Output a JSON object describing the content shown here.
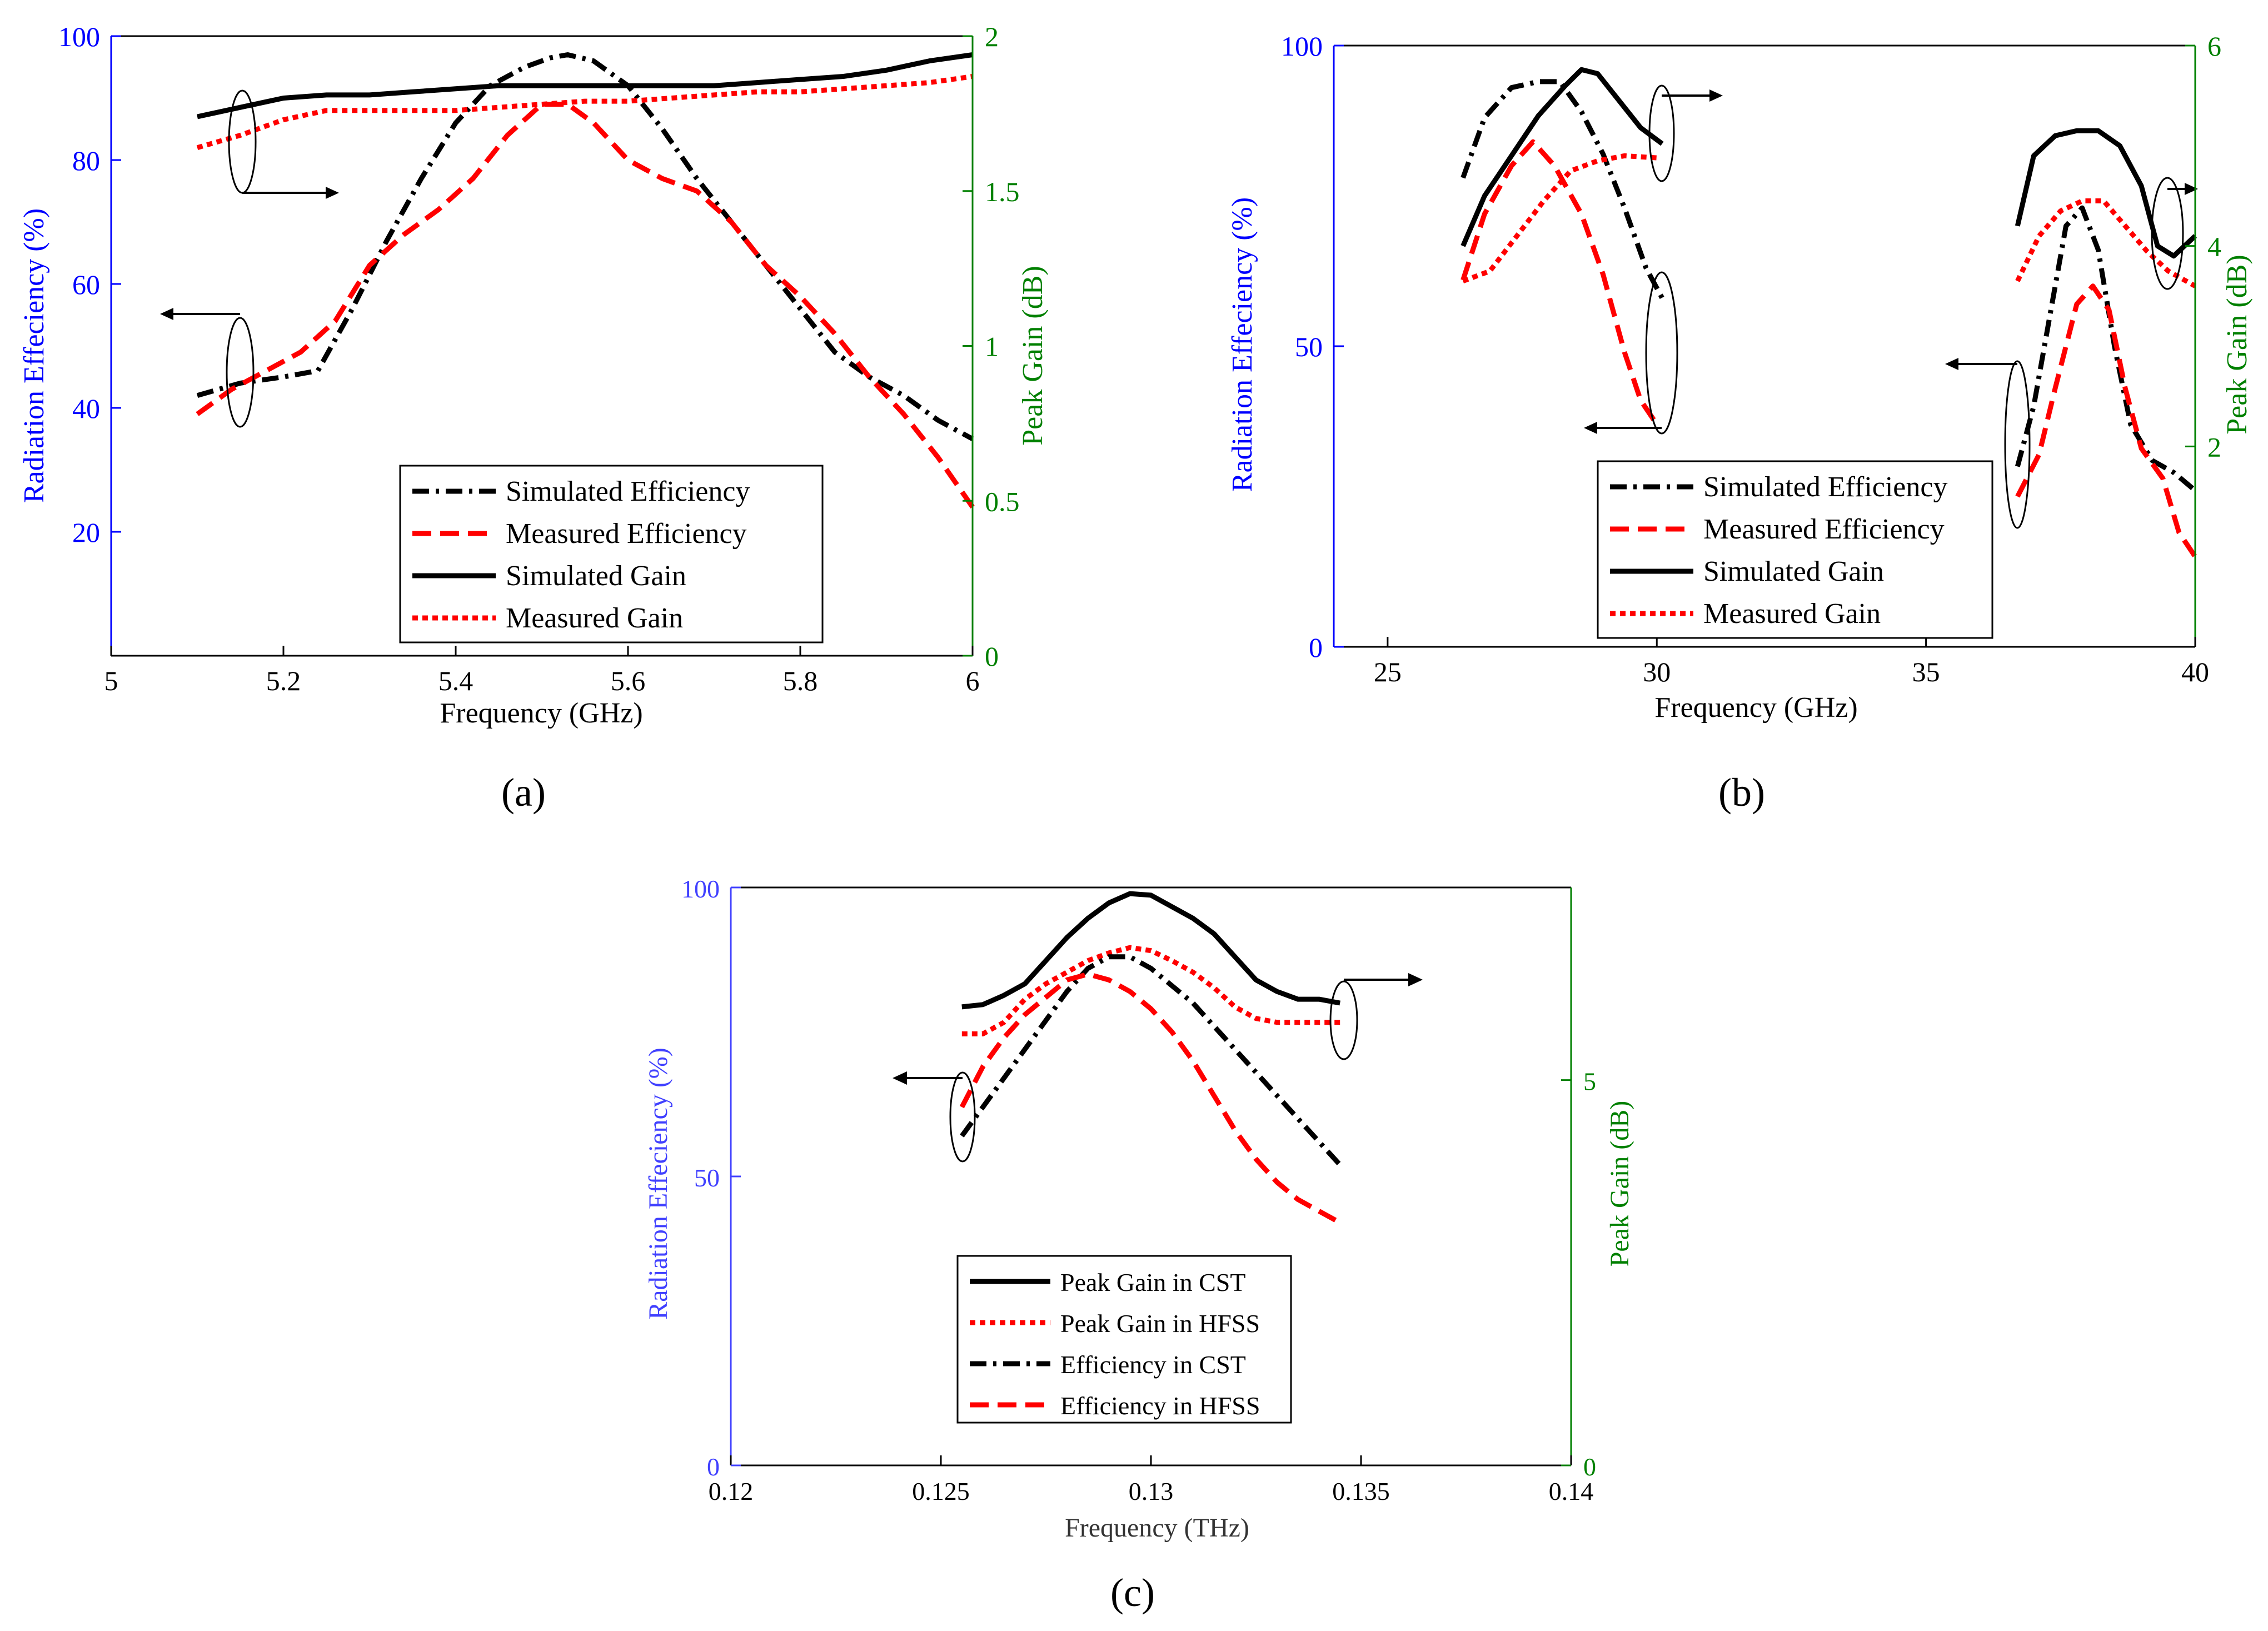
{
  "colors": {
    "left_axis": "#0000ff",
    "right_axis": "#008000",
    "black": "#000000",
    "red": "#ff0000"
  },
  "chart_data": [
    {
      "type": "line",
      "panel_label": "(a)",
      "xlabel": "Frequency (GHz)",
      "ylabel": "Radiation Effeciency (%)",
      "y2label": "Peak Gain (dB)",
      "xlim": [
        5,
        6
      ],
      "ylim": [
        0,
        100
      ],
      "y2lim": [
        0,
        2
      ],
      "xticks": [
        5,
        5.2,
        5.4,
        5.6,
        5.8,
        6
      ],
      "xtick_labels": [
        "5",
        "5.2",
        "5.4",
        "5.6",
        "5.8",
        "6"
      ],
      "yticks": [
        20,
        40,
        60,
        80,
        100
      ],
      "ytick_labels": [
        "20",
        "40",
        "60",
        "80",
        "100"
      ],
      "y2ticks": [
        0,
        0.5,
        1,
        1.5,
        2
      ],
      "y2tick_labels": [
        "0",
        "0.5",
        "1",
        "1.5",
        "2"
      ],
      "legend_position": "bottom-right",
      "series": [
        {
          "name": "Simulated Efficiency",
          "axis": "left",
          "color": "#000000",
          "style": "dashdot",
          "x": [
            5.1,
            5.15,
            5.2,
            5.24,
            5.28,
            5.32,
            5.36,
            5.4,
            5.44,
            5.48,
            5.51,
            5.53,
            5.56,
            5.6,
            5.64,
            5.68,
            5.72,
            5.76,
            5.8,
            5.84,
            5.88,
            5.92,
            5.96,
            6.0
          ],
          "y": [
            42,
            44,
            45,
            46,
            56,
            67,
            77,
            86,
            92,
            95,
            96.5,
            97,
            96,
            92,
            85,
            77,
            70,
            63,
            56,
            49,
            45,
            42,
            38,
            35
          ]
        },
        {
          "name": "Measured Efficiency",
          "axis": "left",
          "color": "#ff0000",
          "style": "dashed",
          "x": [
            5.1,
            5.14,
            5.18,
            5.22,
            5.26,
            5.3,
            5.34,
            5.38,
            5.42,
            5.46,
            5.5,
            5.53,
            5.56,
            5.6,
            5.64,
            5.68,
            5.72,
            5.76,
            5.8,
            5.84,
            5.88,
            5.92,
            5.96,
            6.0
          ],
          "y": [
            39,
            43,
            46,
            49,
            54,
            63,
            68,
            72,
            77,
            84,
            89,
            89,
            86,
            80,
            77,
            75,
            70,
            63,
            58,
            52,
            45,
            39,
            32,
            24
          ]
        },
        {
          "name": "Simulated Gain",
          "axis": "right",
          "color": "#000000",
          "style": "solid",
          "x": [
            5.1,
            5.15,
            5.2,
            5.25,
            5.3,
            5.35,
            5.4,
            5.45,
            5.5,
            5.55,
            5.6,
            5.65,
            5.7,
            5.75,
            5.8,
            5.85,
            5.9,
            5.95,
            6.0
          ],
          "y": [
            1.74,
            1.77,
            1.8,
            1.81,
            1.81,
            1.82,
            1.83,
            1.84,
            1.84,
            1.84,
            1.84,
            1.84,
            1.84,
            1.85,
            1.86,
            1.87,
            1.89,
            1.92,
            1.94
          ]
        },
        {
          "name": "Measured Gain",
          "axis": "right",
          "color": "#ff0000",
          "style": "dotted",
          "x": [
            5.1,
            5.15,
            5.2,
            5.25,
            5.3,
            5.35,
            5.4,
            5.45,
            5.5,
            5.55,
            5.6,
            5.65,
            5.7,
            5.75,
            5.8,
            5.85,
            5.9,
            5.95,
            6.0
          ],
          "y": [
            1.64,
            1.68,
            1.73,
            1.76,
            1.76,
            1.76,
            1.76,
            1.77,
            1.78,
            1.79,
            1.79,
            1.8,
            1.81,
            1.82,
            1.82,
            1.83,
            1.84,
            1.85,
            1.87
          ]
        }
      ]
    },
    {
      "type": "line",
      "panel_label": "(b)",
      "xlabel": "Frequency (GHz)",
      "ylabel": "Radiation Effeciency (%)",
      "y2label": "Peak Gain (dB)",
      "xlim": [
        24,
        40
      ],
      "ylim": [
        0,
        100
      ],
      "y2lim": [
        0,
        6
      ],
      "xticks": [
        25,
        30,
        35,
        40
      ],
      "xtick_labels": [
        "25",
        "30",
        "35",
        "40"
      ],
      "yticks": [
        0,
        50,
        100
      ],
      "ytick_labels": [
        "0",
        "50",
        "100"
      ],
      "y2ticks": [
        2,
        4,
        6
      ],
      "y2tick_labels": [
        "2",
        "4",
        "6"
      ],
      "legend_position": "bottom-center",
      "series": [
        {
          "name": "Simulated Efficiency",
          "axis": "left",
          "color": "#000000",
          "style": "dashdot",
          "segments": [
            {
              "x": [
                26.4,
                26.8,
                27.3,
                27.8,
                28.2,
                28.6,
                29.0,
                29.4,
                29.8,
                30.1
              ],
              "y": [
                78,
                88,
                93,
                94,
                94,
                89,
                82,
                73,
                63,
                58
              ]
            },
            {
              "x": [
                36.7,
                37.0,
                37.3,
                37.6,
                37.9,
                38.2,
                38.5,
                38.8,
                39.2,
                39.6,
                40.0
              ],
              "y": [
                30,
                40,
                55,
                70,
                73,
                66,
                50,
                37,
                31,
                29,
                26
              ]
            }
          ]
        },
        {
          "name": "Measured Efficiency",
          "axis": "left",
          "color": "#ff0000",
          "style": "dashed",
          "segments": [
            {
              "x": [
                26.4,
                26.8,
                27.3,
                27.7,
                28.1,
                28.6,
                29.0,
                29.4,
                29.7,
                30.0
              ],
              "y": [
                61,
                72,
                80,
                84,
                80,
                72,
                62,
                49,
                41,
                37
              ]
            },
            {
              "x": [
                36.7,
                37.1,
                37.4,
                37.8,
                38.1,
                38.4,
                38.7,
                39.0,
                39.4,
                39.7,
                40.0
              ],
              "y": [
                25,
                32,
                43,
                57,
                60,
                56,
                43,
                33,
                28,
                19,
                15
              ]
            }
          ]
        },
        {
          "name": "Simulated Gain",
          "axis": "right",
          "color": "#000000",
          "style": "solid",
          "segments": [
            {
              "x": [
                26.4,
                26.8,
                27.3,
                27.8,
                28.3,
                28.6,
                28.9,
                29.3,
                29.7,
                30.1
              ],
              "y": [
                4.0,
                4.5,
                4.9,
                5.3,
                5.6,
                5.76,
                5.72,
                5.45,
                5.18,
                5.02
              ]
            },
            {
              "x": [
                36.7,
                37.0,
                37.4,
                37.8,
                38.2,
                38.6,
                39.0,
                39.3,
                39.6,
                40.0
              ],
              "y": [
                4.2,
                4.9,
                5.1,
                5.15,
                5.15,
                5.0,
                4.6,
                4.0,
                3.9,
                4.1
              ]
            }
          ]
        },
        {
          "name": "Measured Gain",
          "axis": "right",
          "color": "#ff0000",
          "style": "dotted",
          "segments": [
            {
              "x": [
                26.4,
                26.9,
                27.4,
                27.9,
                28.4,
                28.9,
                29.4,
                30.0
              ],
              "y": [
                3.65,
                3.75,
                4.1,
                4.45,
                4.75,
                4.85,
                4.9,
                4.88
              ]
            },
            {
              "x": [
                36.7,
                37.1,
                37.5,
                37.9,
                38.3,
                38.7,
                39.1,
                39.5,
                40.0
              ],
              "y": [
                3.65,
                4.1,
                4.35,
                4.45,
                4.45,
                4.2,
                3.95,
                3.75,
                3.6
              ]
            }
          ]
        }
      ]
    },
    {
      "type": "line",
      "panel_label": "(c)",
      "xlabel": "Frequency (THz)",
      "ylabel": "Radiation Effeciency (%)",
      "y2label": "Peak Gain (dB)",
      "xlim": [
        0.12,
        0.14
      ],
      "ylim": [
        0,
        100
      ],
      "y2lim": [
        0,
        7.5
      ],
      "xticks": [
        0.12,
        0.125,
        0.13,
        0.135,
        0.14
      ],
      "xtick_labels": [
        "0.12",
        "0.125",
        "0.13",
        "0.135",
        "0.14"
      ],
      "yticks": [
        0,
        50,
        100
      ],
      "ytick_labels": [
        "0",
        "50",
        "100"
      ],
      "y2ticks": [
        0,
        5
      ],
      "y2tick_labels": [
        "0",
        "5"
      ],
      "legend_position": "bottom-center",
      "series": [
        {
          "name": "Peak Gain in CST",
          "axis": "right",
          "color": "#000000",
          "style": "solid",
          "x": [
            0.1255,
            0.126,
            0.1265,
            0.127,
            0.1275,
            0.128,
            0.1285,
            0.129,
            0.1295,
            0.13,
            0.1305,
            0.131,
            0.1315,
            0.132,
            0.1325,
            0.133,
            0.1335,
            0.134,
            0.1345
          ],
          "y": [
            5.95,
            5.98,
            6.1,
            6.25,
            6.55,
            6.85,
            7.1,
            7.3,
            7.42,
            7.4,
            7.25,
            7.1,
            6.9,
            6.6,
            6.3,
            6.15,
            6.05,
            6.05,
            6.0
          ]
        },
        {
          "name": "Peak Gain in HFSS",
          "axis": "right",
          "color": "#ff0000",
          "style": "dotted",
          "x": [
            0.1255,
            0.126,
            0.1265,
            0.127,
            0.1275,
            0.128,
            0.1285,
            0.129,
            0.1295,
            0.13,
            0.1305,
            0.131,
            0.1315,
            0.132,
            0.1325,
            0.133,
            0.1335,
            0.134,
            0.1345
          ],
          "y": [
            5.6,
            5.6,
            5.75,
            6.05,
            6.25,
            6.4,
            6.55,
            6.65,
            6.72,
            6.68,
            6.55,
            6.4,
            6.2,
            5.95,
            5.8,
            5.75,
            5.75,
            5.75,
            5.75
          ]
        },
        {
          "name": "Efficiency in CST",
          "axis": "left",
          "color": "#000000",
          "style": "dashdot",
          "x": [
            0.1255,
            0.126,
            0.1265,
            0.127,
            0.1275,
            0.128,
            0.1285,
            0.129,
            0.1295,
            0.13,
            0.1305,
            0.131,
            0.1315,
            0.132,
            0.1325,
            0.133,
            0.1335,
            0.134,
            0.1345
          ],
          "y": [
            57,
            62,
            67,
            72,
            77,
            82,
            86,
            88,
            88,
            86,
            83,
            80,
            76,
            72,
            68,
            64,
            60,
            56,
            52
          ]
        },
        {
          "name": "Efficiency in HFSS",
          "axis": "left",
          "color": "#ff0000",
          "style": "dashed",
          "x": [
            0.1255,
            0.126,
            0.1265,
            0.127,
            0.1275,
            0.128,
            0.1285,
            0.129,
            0.1295,
            0.13,
            0.1305,
            0.131,
            0.1315,
            0.132,
            0.1325,
            0.133,
            0.1335,
            0.134,
            0.1345
          ],
          "y": [
            62,
            69,
            74,
            78,
            81,
            84,
            85,
            84,
            82,
            79,
            75,
            70,
            64,
            58,
            53,
            49,
            46,
            44,
            42
          ]
        }
      ]
    }
  ]
}
